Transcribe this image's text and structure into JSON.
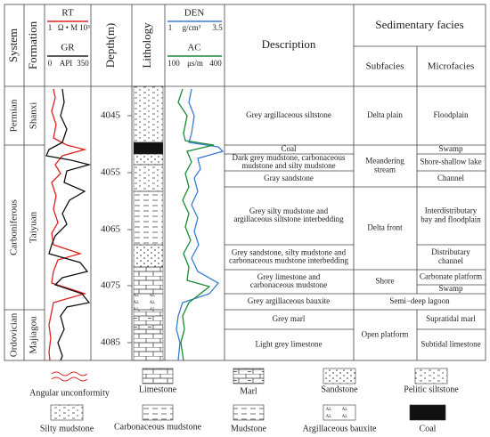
{
  "header": {
    "system": "System",
    "formation": "Formation",
    "rt": "RT",
    "rt_scale": [
      "1",
      "Ω • M",
      "10³"
    ],
    "gr": "GR",
    "gr_scale": [
      "0",
      "API",
      "350"
    ],
    "depth": "Depth(m)",
    "lithology": "Lithology",
    "den": "DEN",
    "den_scale": [
      "1",
      "g/cm³",
      "3.5"
    ],
    "ac": "AC",
    "ac_scale": [
      "100",
      "μs/m",
      "400"
    ],
    "description": "Description",
    "facies": "Sedimentary facies",
    "subfacies": "Subfacies",
    "microfacies": "Microfacies"
  },
  "systems": [
    "Permian",
    "Carboniferous",
    "Ordovician"
  ],
  "formations": [
    "Shanxi",
    "Taiyuan",
    "Majiagou"
  ],
  "depths": [
    "4045",
    "4055",
    "4065",
    "4075",
    "4085"
  ],
  "descriptions": [
    [
      "Grey argillaceous siltstone"
    ],
    [
      "Coal"
    ],
    [
      "Dark grey mudstone, carbonaceous",
      "mudstone and silty mudstone"
    ],
    [
      "Gray sandstone"
    ],
    [
      "Grey silty mudstone and",
      "argillaceous siltstone interbedding"
    ],
    [
      "Grey sandstone, silty mudstone and",
      "carbonaceous mudstone interbedding"
    ],
    [
      "Grey limestone and",
      "carbonaceous mudstone"
    ],
    [
      "Grey argillaceous bauxite"
    ],
    [
      "Grey marl"
    ],
    [
      "Light grey limestone"
    ]
  ],
  "subfacies": [
    [
      "Delta plain"
    ],
    [
      "Meandering",
      "stream"
    ],
    [
      "Delta front"
    ],
    [
      "Shore"
    ],
    [
      "Semi−deep lagoon"
    ],
    [
      "Open platform"
    ]
  ],
  "microfacies": [
    [
      "Floodplain"
    ],
    [
      "Swamp"
    ],
    [
      "Shore-shallow lake"
    ],
    [
      "Channel"
    ],
    [
      "Interdistributary",
      "bay and floodplain"
    ],
    [
      "Distributary",
      "channel"
    ],
    [
      "Carbonate platform"
    ],
    [
      "Swamp"
    ],
    [
      "Supratidal marl"
    ],
    [
      "Subtidal limestone"
    ]
  ],
  "legend": [
    "Angular unconformity",
    "Limestone",
    "Marl",
    "Sandstone",
    "Pelitic siltstone",
    "Silty mudstone",
    "Carbonaceous mudstone",
    "Mudstone",
    "Argillaceous bauxite",
    "Coal"
  ]
}
